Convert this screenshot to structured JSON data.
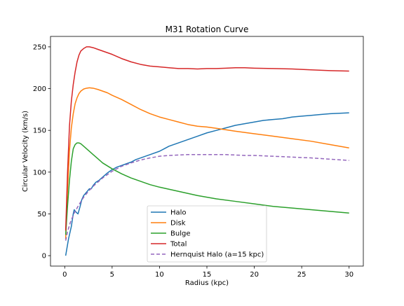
{
  "chart_data": {
    "type": "line",
    "title": "M31 Rotation Curve",
    "xlabel": "Radius (kpc)",
    "ylabel": "Circular Velocity (km/s)",
    "xlim": [
      -1.5,
      31.5
    ],
    "ylim": [
      -12.5,
      262.5
    ],
    "xticks": [
      0,
      5,
      10,
      15,
      20,
      25,
      30
    ],
    "xtick_labels": [
      "0",
      "5",
      "10",
      "15",
      "20",
      "25",
      "30"
    ],
    "yticks": [
      0,
      50,
      100,
      150,
      200,
      250
    ],
    "ytick_labels": [
      "0",
      "50",
      "100",
      "150",
      "200",
      "250"
    ],
    "grid": false,
    "legend_position": "lower center",
    "series": [
      {
        "name": "Halo",
        "color": "#1f77b4",
        "style": "solid",
        "x": [
          0.1,
          0.4,
          0.7,
          0.9,
          1.0,
          1.2,
          1.4,
          1.6,
          1.8,
          2.0,
          2.3,
          2.6,
          2.8,
          3.0,
          3.3,
          3.6,
          4,
          4.5,
          5,
          5.5,
          6,
          6.5,
          7,
          7.5,
          8,
          9,
          10,
          10.5,
          11,
          12,
          13,
          14,
          15,
          16,
          17,
          18,
          19,
          20,
          21,
          22,
          23,
          24,
          25,
          26,
          27,
          28,
          29,
          30
        ],
        "y": [
          0,
          20,
          35,
          50,
          55,
          52,
          50,
          58,
          67,
          72,
          76,
          80,
          80,
          84,
          88,
          90,
          94,
          99,
          103,
          106,
          108,
          110,
          112,
          115,
          117,
          121,
          125,
          128,
          131,
          135,
          139,
          143,
          147,
          150,
          153,
          156,
          158,
          160,
          162,
          163,
          164,
          166,
          167,
          168,
          169,
          170,
          170.5,
          171
        ]
      },
      {
        "name": "Disk",
        "color": "#ff7f0e",
        "style": "solid",
        "x": [
          0.1,
          0.3,
          0.5,
          0.7,
          0.9,
          1.1,
          1.3,
          1.5,
          1.7,
          2.0,
          2.3,
          2.6,
          3.0,
          3.5,
          4,
          4.5,
          5,
          6,
          7,
          8,
          9,
          10,
          11,
          12,
          13,
          14,
          15,
          16,
          18,
          20,
          22,
          24,
          26,
          28,
          30
        ],
        "y": [
          20,
          80,
          125,
          153,
          170,
          182,
          189,
          194,
          197,
          199.5,
          200.5,
          201,
          200.5,
          199,
          197,
          195,
          192,
          187,
          181,
          175,
          170,
          166,
          163,
          160,
          157,
          155,
          154,
          152.5,
          149,
          146,
          143,
          140,
          137,
          133,
          129
        ]
      },
      {
        "name": "Bulge",
        "color": "#2ca02c",
        "style": "solid",
        "x": [
          0.1,
          0.3,
          0.5,
          0.7,
          0.9,
          1.1,
          1.3,
          1.5,
          1.7,
          2.0,
          2.5,
          3,
          3.5,
          4,
          5,
          6,
          7,
          8,
          9,
          10,
          12,
          14,
          16,
          18,
          20,
          22,
          24,
          26,
          28,
          30
        ],
        "y": [
          25,
          60,
          90,
          113,
          128,
          133,
          135,
          135,
          134,
          131,
          126,
          121,
          116,
          111,
          104,
          98,
          93,
          89,
          85,
          82,
          77,
          72,
          68,
          65,
          62,
          59,
          57,
          55,
          53,
          51
        ]
      },
      {
        "name": "Total",
        "color": "#d62728",
        "style": "solid",
        "x": [
          0.1,
          0.3,
          0.5,
          0.7,
          0.9,
          1.1,
          1.3,
          1.5,
          1.7,
          2.0,
          2.3,
          2.6,
          3.0,
          3.5,
          4,
          4.5,
          5,
          6,
          7,
          8,
          9,
          10,
          11,
          12,
          13,
          14,
          15,
          16,
          17,
          18,
          19,
          20,
          22,
          24,
          26,
          28,
          30
        ],
        "y": [
          30,
          100,
          155,
          185,
          205,
          220,
          232,
          240,
          245,
          248,
          250,
          250,
          249,
          247,
          245,
          243,
          241,
          236,
          232,
          229,
          227,
          226,
          225,
          224,
          224,
          223.5,
          224,
          224,
          224.5,
          225,
          225,
          224.5,
          224,
          223.5,
          222.5,
          221.5,
          221
        ]
      },
      {
        "name": "Hernquist Halo (a=15 kpc)",
        "color": "#9467bd",
        "style": "dashed",
        "x": [
          0.1,
          0.3,
          0.6,
          1,
          1.5,
          2,
          2.5,
          3,
          4,
          5,
          6,
          7,
          8,
          9,
          10,
          11,
          12,
          13,
          14,
          15,
          16,
          17,
          18,
          19,
          20,
          22,
          24,
          26,
          28,
          30
        ],
        "y": [
          18,
          29,
          40,
          51,
          61,
          70,
          77,
          83,
          93,
          101,
          107,
          111,
          114.5,
          117,
          119,
          120,
          120.5,
          121,
          121,
          121,
          121,
          121,
          120.5,
          120,
          120,
          119,
          118,
          117,
          115.5,
          114
        ]
      }
    ]
  }
}
